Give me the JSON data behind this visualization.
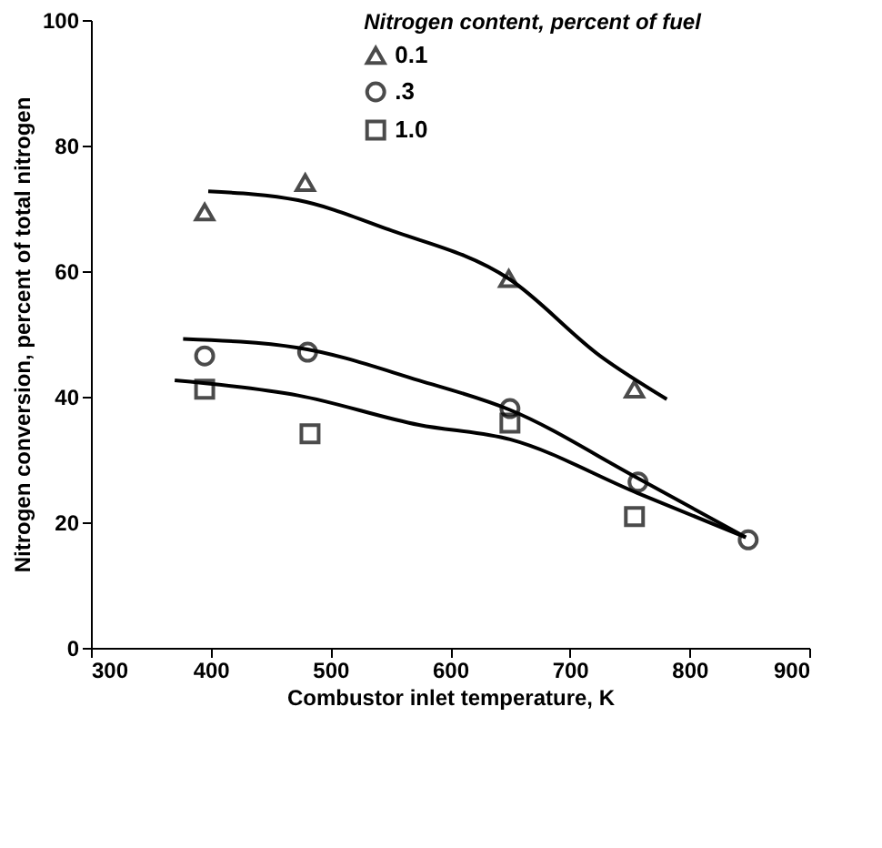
{
  "chart_data": {
    "type": "scatter",
    "xlabel": "Combustor inlet temperature, K",
    "ylabel": "Nitrogen conversion, percent of total nitrogen",
    "legend_title": "Nitrogen content, percent of fuel",
    "xlim": [
      300,
      900
    ],
    "xticks": [
      300,
      400,
      500,
      600,
      700,
      800,
      900
    ],
    "ylim": [
      0,
      100
    ],
    "yticks": [
      0,
      20,
      40,
      60,
      80,
      100
    ],
    "grid": false,
    "legend": "top",
    "series": [
      {
        "name": "0.1",
        "marker": "triangle",
        "color": "#000000",
        "x": [
          395,
          479,
          649,
          754
        ],
        "values": [
          69.4,
          74.1,
          58.8,
          41.2
        ]
      },
      {
        "name": ".3",
        "marker": "circle",
        "color": "#000000",
        "x": [
          395,
          481,
          650,
          757,
          849
        ],
        "values": [
          46.5,
          47.1,
          38.1,
          26.4,
          17.2
        ]
      },
      {
        "name": "1.0",
        "marker": "square",
        "color": "#000000",
        "x": [
          395,
          483,
          650,
          754
        ],
        "values": [
          41.2,
          34.1,
          35.8,
          20.9
        ]
      },
      {
        "type": "line",
        "color": "#000000",
        "line_style": "solid",
        "x": [
          398,
          473,
          549,
          649,
          726,
          781
        ],
        "values": [
          72.7,
          71.3,
          66.6,
          58.8,
          46.4,
          39.6
        ]
      },
      {
        "type": "line",
        "color": "#000000",
        "line_style": "solid",
        "x": [
          377,
          473,
          574,
          650,
          756,
          847
        ],
        "values": [
          49.2,
          47.8,
          42.6,
          37.9,
          27.1,
          17.6
        ]
      },
      {
        "type": "line",
        "color": "#000000",
        "line_style": "solid",
        "x": [
          370,
          473,
          574,
          650,
          756,
          847
        ],
        "values": [
          42.6,
          40.2,
          35.5,
          33.2,
          24.7,
          17.6
        ]
      }
    ]
  }
}
